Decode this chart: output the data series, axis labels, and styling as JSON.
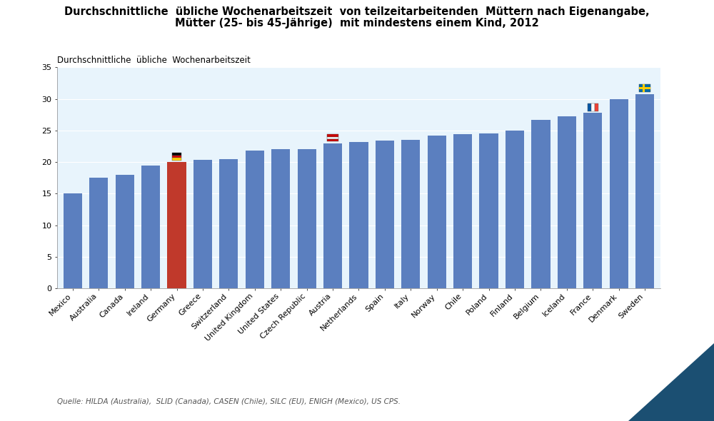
{
  "title_line1": "Durchschnittliche  übliche Wochenarbeitszeit  von teilzeitarbeitenden  Müttern nach Eigenangabe,",
  "title_line2": "Mütter (25- bis 45-Jährige)  mit mindestens einem Kind, 2012",
  "ylabel": "Durchschnittliche  übliche  Wochenarbeitszeit",
  "source": "Quelle: HILDA (Australia),  SLID (Canada), CASEN (Chile), SILC (EU), ENIGH (Mexico), US CPS.",
  "countries": [
    "Mexico",
    "Australia",
    "Canada",
    "Ireland",
    "Germany",
    "Greece",
    "Switzerland",
    "United Kingdom",
    "United States",
    "Czech Republic",
    "Austria",
    "Netherlands",
    "Spain",
    "Italy",
    "Norway",
    "Chile",
    "Poland",
    "Finland",
    "Belgium",
    "Iceland",
    "France",
    "Denmark",
    "Sweden"
  ],
  "values": [
    15.1,
    17.5,
    18.0,
    19.5,
    20.0,
    20.3,
    20.5,
    21.8,
    22.0,
    22.0,
    23.0,
    23.2,
    23.4,
    23.5,
    24.2,
    24.4,
    24.5,
    25.0,
    26.7,
    27.2,
    27.8,
    30.0,
    30.8
  ],
  "bar_color_default": "#5B7FBF",
  "bar_color_germany": "#C0392B",
  "highlight_index": 4,
  "ylim": [
    0,
    35
  ],
  "yticks": [
    0,
    5,
    10,
    15,
    20,
    25,
    30,
    35
  ],
  "bg_color": "#E8F4FC",
  "flag_germany_index": 4,
  "flag_austria_index": 10,
  "flag_france_index": 20,
  "flag_sweden_index": 22,
  "title_fontsize": 10.5,
  "ylabel_fontsize": 8.5,
  "tick_fontsize": 8.0,
  "source_fontsize": 7.5,
  "triangle_color": "#1B4F72"
}
